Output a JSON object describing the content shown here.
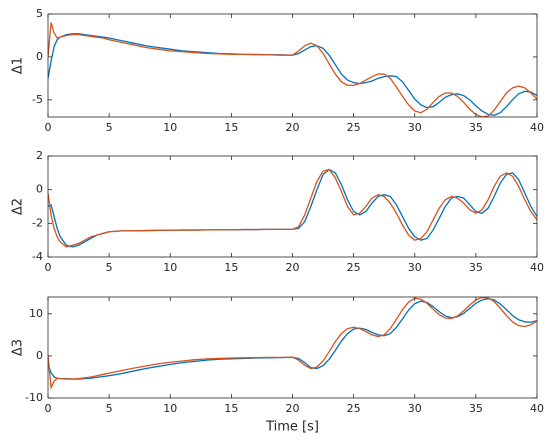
{
  "chart_data": [
    {
      "type": "line",
      "ylabel": "Δ1",
      "x": [
        0,
        0.25,
        0.5,
        0.75,
        1,
        1.5,
        2,
        2.5,
        3,
        3.5,
        4,
        4.5,
        5,
        6,
        7,
        8,
        9,
        10,
        11,
        12,
        13,
        14,
        15,
        16,
        17,
        18,
        19,
        20,
        20.5,
        21,
        21.5,
        22,
        22.5,
        23,
        23.5,
        24,
        24.5,
        25,
        25.5,
        26,
        26.5,
        27,
        27.5,
        28,
        28.5,
        29,
        29.5,
        30,
        30.5,
        31,
        31.5,
        32,
        32.5,
        33,
        33.5,
        34,
        34.5,
        35,
        35.5,
        36,
        36.5,
        37,
        37.5,
        38,
        38.5,
        39,
        39.5,
        40
      ],
      "series": [
        {
          "color": "#0072BD",
          "values": [
            -2.5,
            -0.5,
            1.2,
            2.0,
            2.3,
            2.6,
            2.7,
            2.7,
            2.6,
            2.5,
            2.4,
            2.3,
            2.2,
            1.9,
            1.6,
            1.3,
            1.1,
            0.9,
            0.7,
            0.6,
            0.5,
            0.4,
            0.35,
            0.3,
            0.3,
            0.25,
            0.25,
            0.2,
            0.4,
            0.8,
            1.2,
            1.3,
            1.0,
            0.2,
            -0.9,
            -2.0,
            -2.7,
            -3.0,
            -3.1,
            -3.0,
            -2.8,
            -2.5,
            -2.3,
            -2.2,
            -2.3,
            -2.9,
            -3.9,
            -4.9,
            -5.6,
            -5.9,
            -5.8,
            -5.3,
            -4.7,
            -4.4,
            -4.3,
            -4.5,
            -5.0,
            -5.7,
            -6.3,
            -6.7,
            -6.8,
            -6.5,
            -5.8,
            -5.0,
            -4.3,
            -4.0,
            -4.1,
            -4.5
          ]
        },
        {
          "color": "#D95319",
          "values": [
            0,
            4.0,
            2.8,
            2.2,
            2.3,
            2.5,
            2.6,
            2.6,
            2.5,
            2.4,
            2.3,
            2.2,
            2.0,
            1.7,
            1.4,
            1.1,
            0.9,
            0.7,
            0.6,
            0.5,
            0.4,
            0.35,
            0.3,
            0.3,
            0.25,
            0.25,
            0.2,
            0.2,
            0.7,
            1.3,
            1.6,
            1.3,
            0.4,
            -0.8,
            -2.0,
            -2.9,
            -3.3,
            -3.3,
            -3.1,
            -2.7,
            -2.3,
            -2.0,
            -2.0,
            -2.5,
            -3.5,
            -4.6,
            -5.6,
            -6.3,
            -6.5,
            -6.1,
            -5.3,
            -4.6,
            -4.2,
            -4.2,
            -4.6,
            -5.3,
            -6.1,
            -6.7,
            -7.0,
            -6.9,
            -6.2,
            -5.2,
            -4.2,
            -3.6,
            -3.4,
            -3.6,
            -4.2,
            -4.9
          ]
        }
      ],
      "xlim": [
        0,
        40
      ],
      "xticks": [
        0,
        5,
        10,
        15,
        20,
        25,
        30,
        35,
        40
      ],
      "ylim": [
        -7,
        5
      ],
      "yticks": [
        -5,
        0,
        5
      ]
    },
    {
      "type": "line",
      "ylabel": "Δ2",
      "x": [
        0,
        0.25,
        0.5,
        0.75,
        1,
        1.5,
        2,
        2.5,
        3,
        3.5,
        4,
        4.5,
        5,
        6,
        7,
        8,
        9,
        10,
        11,
        12,
        13,
        14,
        15,
        16,
        17,
        18,
        19,
        20,
        20.5,
        21,
        21.5,
        22,
        22.5,
        23,
        23.5,
        24,
        24.5,
        25,
        25.5,
        26,
        26.5,
        27,
        27.5,
        28,
        28.5,
        29,
        29.5,
        30,
        30.5,
        31,
        31.5,
        32,
        32.5,
        33,
        33.5,
        34,
        34.5,
        35,
        35.5,
        36,
        36.5,
        37,
        37.5,
        38,
        38.5,
        39,
        39.5,
        40
      ],
      "series": [
        {
          "color": "#0072BD",
          "values": [
            -1.0,
            -0.9,
            -1.6,
            -2.3,
            -2.8,
            -3.3,
            -3.4,
            -3.3,
            -3.1,
            -2.9,
            -2.7,
            -2.6,
            -2.5,
            -2.45,
            -2.44,
            -2.43,
            -2.42,
            -2.41,
            -2.4,
            -2.4,
            -2.39,
            -2.38,
            -2.38,
            -2.37,
            -2.37,
            -2.36,
            -2.36,
            -2.35,
            -2.3,
            -1.9,
            -1.0,
            0.0,
            0.9,
            1.2,
            1.0,
            0.3,
            -0.6,
            -1.3,
            -1.5,
            -1.3,
            -0.8,
            -0.4,
            -0.3,
            -0.4,
            -0.9,
            -1.6,
            -2.3,
            -2.8,
            -3.0,
            -2.9,
            -2.4,
            -1.7,
            -1.0,
            -0.5,
            -0.4,
            -0.5,
            -0.9,
            -1.3,
            -1.4,
            -1.1,
            -0.4,
            0.4,
            0.9,
            1.0,
            0.6,
            -0.2,
            -1.0,
            -1.6
          ]
        },
        {
          "color": "#D95319",
          "values": [
            -0.2,
            -1.5,
            -2.3,
            -2.8,
            -3.1,
            -3.4,
            -3.3,
            -3.2,
            -3.0,
            -2.8,
            -2.7,
            -2.6,
            -2.5,
            -2.45,
            -2.44,
            -2.43,
            -2.42,
            -2.41,
            -2.4,
            -2.4,
            -2.39,
            -2.38,
            -2.38,
            -2.37,
            -2.37,
            -2.36,
            -2.36,
            -2.35,
            -2.2,
            -1.5,
            -0.5,
            0.5,
            1.1,
            1.2,
            0.7,
            -0.1,
            -1.0,
            -1.5,
            -1.4,
            -1.0,
            -0.5,
            -0.3,
            -0.4,
            -0.8,
            -1.4,
            -2.1,
            -2.7,
            -3.0,
            -2.9,
            -2.5,
            -1.8,
            -1.1,
            -0.6,
            -0.4,
            -0.5,
            -0.8,
            -1.2,
            -1.4,
            -1.2,
            -0.6,
            0.2,
            0.8,
            1.0,
            0.8,
            0.2,
            -0.6,
            -1.3,
            -1.8
          ]
        }
      ],
      "xlim": [
        0,
        40
      ],
      "xticks": [
        0,
        5,
        10,
        15,
        20,
        25,
        30,
        35,
        40
      ],
      "ylim": [
        -4,
        2
      ],
      "yticks": [
        -4,
        -2,
        0,
        2
      ]
    },
    {
      "type": "line",
      "ylabel": "Δ3",
      "xlabel": "Time [s]",
      "x": [
        0,
        0.25,
        0.5,
        0.75,
        1,
        1.5,
        2,
        2.5,
        3,
        3.5,
        4,
        4.5,
        5,
        6,
        7,
        8,
        9,
        10,
        11,
        12,
        13,
        14,
        15,
        16,
        17,
        18,
        19,
        20,
        20.5,
        21,
        21.5,
        22,
        22.5,
        23,
        23.5,
        24,
        24.5,
        25,
        25.5,
        26,
        26.5,
        27,
        27.5,
        28,
        28.5,
        29,
        29.5,
        30,
        30.5,
        31,
        31.5,
        32,
        32.5,
        33,
        33.5,
        34,
        34.5,
        35,
        35.5,
        36,
        36.5,
        37,
        37.5,
        38,
        38.5,
        39,
        39.5,
        40
      ],
      "series": [
        {
          "color": "#0072BD",
          "values": [
            -2,
            -4,
            -5,
            -5.3,
            -5.4,
            -5.4,
            -5.5,
            -5.5,
            -5.4,
            -5.3,
            -5.1,
            -4.9,
            -4.7,
            -4.2,
            -3.6,
            -3.0,
            -2.5,
            -2.0,
            -1.6,
            -1.3,
            -1.0,
            -0.8,
            -0.7,
            -0.6,
            -0.5,
            -0.45,
            -0.4,
            -0.35,
            -0.6,
            -1.6,
            -2.8,
            -3.0,
            -2.3,
            -0.8,
            1.3,
            3.5,
            5.3,
            6.4,
            6.6,
            6.3,
            5.6,
            5.0,
            4.8,
            5.3,
            6.8,
            8.8,
            10.9,
            12.4,
            13.0,
            12.7,
            11.7,
            10.5,
            9.5,
            9.1,
            9.3,
            10.1,
            11.3,
            12.5,
            13.3,
            13.6,
            13.3,
            12.3,
            11.0,
            9.6,
            8.6,
            8.1,
            8.0,
            8.4
          ]
        },
        {
          "color": "#D95319",
          "values": [
            0,
            -7.5,
            -6,
            -5.3,
            -5.4,
            -5.5,
            -5.5,
            -5.4,
            -5.2,
            -5.0,
            -4.7,
            -4.4,
            -4.1,
            -3.5,
            -2.9,
            -2.4,
            -1.9,
            -1.5,
            -1.2,
            -0.9,
            -0.7,
            -0.6,
            -0.5,
            -0.45,
            -0.4,
            -0.35,
            -0.35,
            -0.3,
            -1.0,
            -2.2,
            -3.0,
            -2.6,
            -1.2,
            1.0,
            3.4,
            5.3,
            6.5,
            6.8,
            6.5,
            5.8,
            5.0,
            4.6,
            5.0,
            6.5,
            8.7,
            11.0,
            12.8,
            13.7,
            13.5,
            12.5,
            11.1,
            9.8,
            9.0,
            8.9,
            9.5,
            10.7,
            12.1,
            13.3,
            13.9,
            13.8,
            12.9,
            11.3,
            9.6,
            8.1,
            7.2,
            7.0,
            7.4,
            8.3
          ]
        }
      ],
      "xlim": [
        0,
        40
      ],
      "xticks": [
        0,
        5,
        10,
        15,
        20,
        25,
        30,
        35,
        40
      ],
      "ylim": [
        -10,
        14
      ],
      "yticks": [
        -10,
        0,
        10
      ]
    }
  ]
}
